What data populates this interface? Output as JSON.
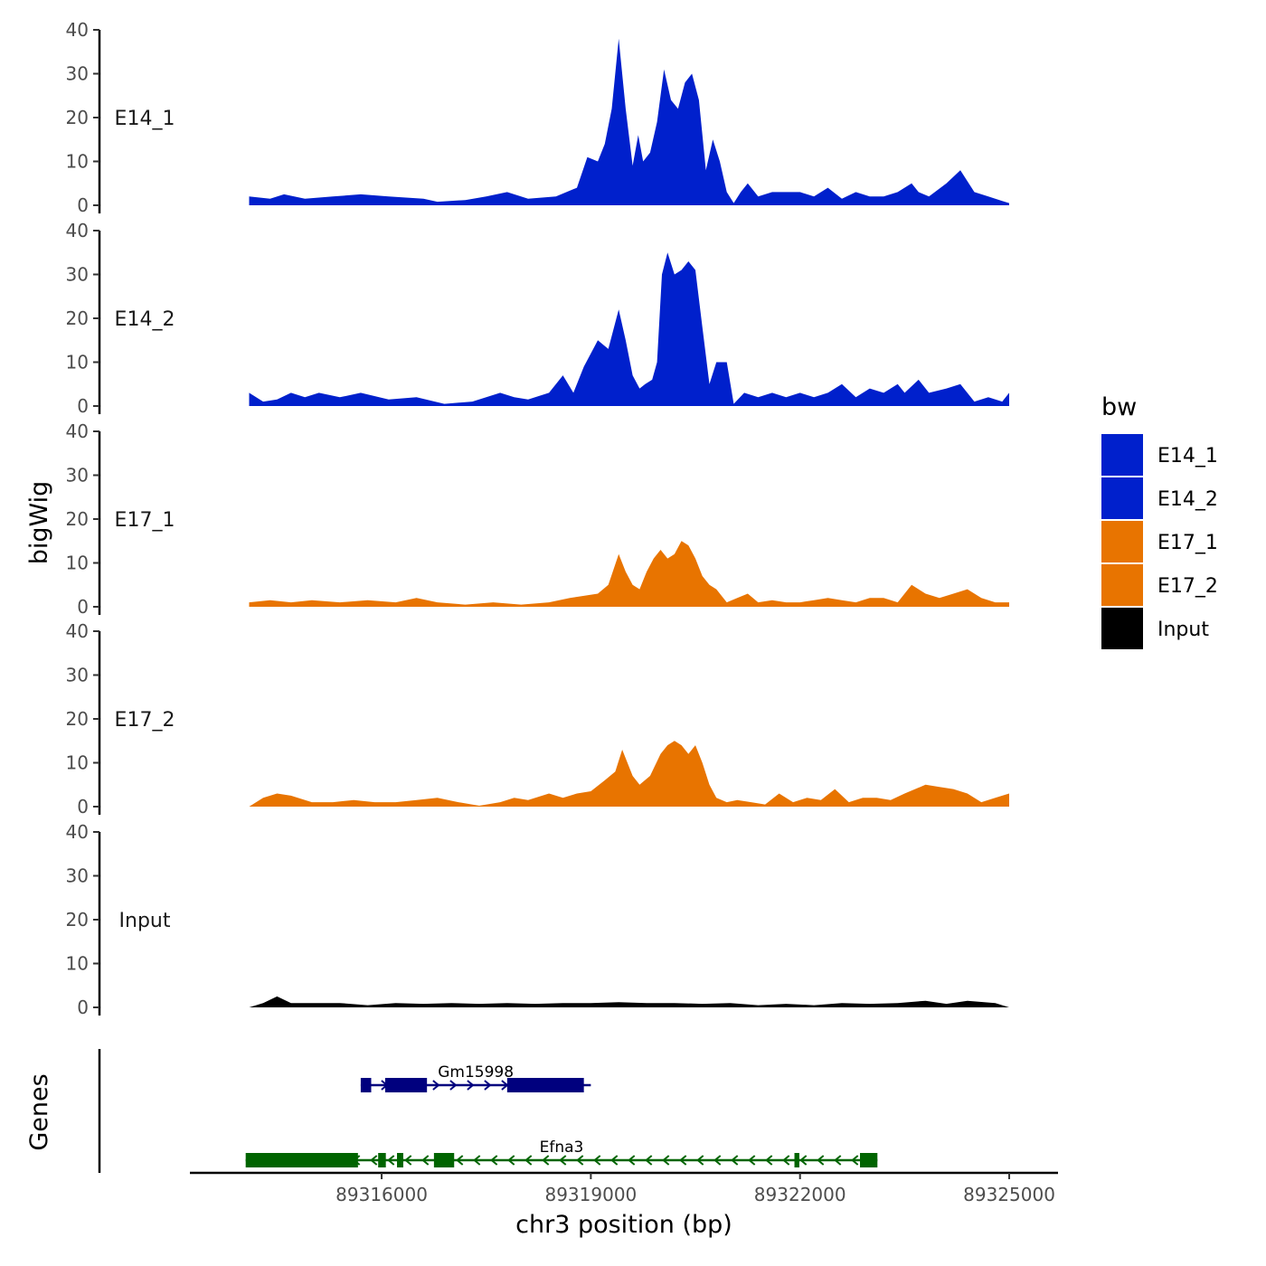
{
  "chart_data": {
    "type": "area",
    "ylabel": "bigWig",
    "xlabel": "chr3 position (bp)",
    "ylim": [
      0,
      40
    ],
    "yticks": [
      "0",
      "10",
      "20",
      "30",
      "40"
    ],
    "xlim": [
      89313250,
      89325700
    ],
    "xticks": [
      {
        "value": 89316000,
        "label": "89316000"
      },
      {
        "value": 89319000,
        "label": "89319000"
      },
      {
        "value": 89322000,
        "label": "89322000"
      },
      {
        "value": 89325000,
        "label": "89325000"
      }
    ],
    "x_range": [
      89314100,
      89325000
    ],
    "series": [
      {
        "name": "E14_1",
        "color": "#0020CC",
        "points": [
          [
            89314100,
            2
          ],
          [
            89314400,
            1.5
          ],
          [
            89314600,
            2.5
          ],
          [
            89314900,
            1.5
          ],
          [
            89315300,
            2
          ],
          [
            89315700,
            2.5
          ],
          [
            89316100,
            2
          ],
          [
            89316600,
            1.5
          ],
          [
            89316800,
            0.8
          ],
          [
            89317200,
            1.2
          ],
          [
            89317500,
            2
          ],
          [
            89317800,
            3
          ],
          [
            89318100,
            1.5
          ],
          [
            89318500,
            2
          ],
          [
            89318800,
            4
          ],
          [
            89318950,
            11
          ],
          [
            89319100,
            10
          ],
          [
            89319200,
            14
          ],
          [
            89319300,
            22
          ],
          [
            89319400,
            38
          ],
          [
            89319500,
            22
          ],
          [
            89319600,
            9
          ],
          [
            89319680,
            16
          ],
          [
            89319750,
            10
          ],
          [
            89319850,
            12
          ],
          [
            89319950,
            19
          ],
          [
            89320050,
            31
          ],
          [
            89320150,
            24
          ],
          [
            89320250,
            22
          ],
          [
            89320350,
            28
          ],
          [
            89320450,
            30
          ],
          [
            89320550,
            24
          ],
          [
            89320650,
            8
          ],
          [
            89320750,
            15
          ],
          [
            89320850,
            10
          ],
          [
            89320950,
            3
          ],
          [
            89321050,
            0.5
          ],
          [
            89321150,
            3
          ],
          [
            89321250,
            5
          ],
          [
            89321400,
            2
          ],
          [
            89321600,
            3
          ],
          [
            89321800,
            3
          ],
          [
            89322000,
            3
          ],
          [
            89322200,
            2
          ],
          [
            89322400,
            4
          ],
          [
            89322600,
            1.5
          ],
          [
            89322800,
            3
          ],
          [
            89323000,
            2
          ],
          [
            89323200,
            2
          ],
          [
            89323400,
            3
          ],
          [
            89323600,
            5
          ],
          [
            89323700,
            3
          ],
          [
            89323850,
            2
          ],
          [
            89324100,
            5
          ],
          [
            89324300,
            8
          ],
          [
            89324500,
            3
          ],
          [
            89324700,
            2
          ],
          [
            89324900,
            1
          ],
          [
            89325000,
            0.5
          ]
        ]
      },
      {
        "name": "E14_2",
        "color": "#0020CC",
        "points": [
          [
            89314100,
            3
          ],
          [
            89314300,
            1
          ],
          [
            89314500,
            1.5
          ],
          [
            89314700,
            3
          ],
          [
            89314900,
            2
          ],
          [
            89315100,
            3
          ],
          [
            89315400,
            2
          ],
          [
            89315700,
            3
          ],
          [
            89316100,
            1.5
          ],
          [
            89316500,
            2
          ],
          [
            89316900,
            0.5
          ],
          [
            89317300,
            1
          ],
          [
            89317700,
            3
          ],
          [
            89317900,
            2
          ],
          [
            89318100,
            1.5
          ],
          [
            89318400,
            3
          ],
          [
            89318600,
            7
          ],
          [
            89318750,
            3
          ],
          [
            89318900,
            9
          ],
          [
            89319100,
            15
          ],
          [
            89319250,
            13
          ],
          [
            89319400,
            22
          ],
          [
            89319500,
            15
          ],
          [
            89319600,
            7
          ],
          [
            89319700,
            4
          ],
          [
            89319780,
            5
          ],
          [
            89319880,
            6
          ],
          [
            89319950,
            10
          ],
          [
            89320020,
            30
          ],
          [
            89320100,
            35
          ],
          [
            89320200,
            30
          ],
          [
            89320300,
            31
          ],
          [
            89320400,
            33
          ],
          [
            89320500,
            31
          ],
          [
            89320600,
            18
          ],
          [
            89320700,
            5
          ],
          [
            89320800,
            10
          ],
          [
            89320950,
            10
          ],
          [
            89321050,
            0.5
          ],
          [
            89321200,
            3
          ],
          [
            89321400,
            2
          ],
          [
            89321600,
            3
          ],
          [
            89321800,
            2
          ],
          [
            89322000,
            3
          ],
          [
            89322200,
            2
          ],
          [
            89322400,
            3
          ],
          [
            89322600,
            5
          ],
          [
            89322800,
            2
          ],
          [
            89323000,
            4
          ],
          [
            89323200,
            3
          ],
          [
            89323400,
            5
          ],
          [
            89323500,
            3
          ],
          [
            89323700,
            6
          ],
          [
            89323850,
            3
          ],
          [
            89324100,
            4
          ],
          [
            89324300,
            5
          ],
          [
            89324500,
            1
          ],
          [
            89324700,
            2
          ],
          [
            89324900,
            1
          ],
          [
            89325000,
            3
          ]
        ]
      },
      {
        "name": "E17_1",
        "color": "#E87400",
        "points": [
          [
            89314100,
            1
          ],
          [
            89314400,
            1.5
          ],
          [
            89314700,
            1
          ],
          [
            89315000,
            1.5
          ],
          [
            89315400,
            1
          ],
          [
            89315800,
            1.5
          ],
          [
            89316200,
            1
          ],
          [
            89316500,
            2
          ],
          [
            89316800,
            1
          ],
          [
            89317200,
            0.5
          ],
          [
            89317600,
            1
          ],
          [
            89318000,
            0.5
          ],
          [
            89318400,
            1
          ],
          [
            89318700,
            2
          ],
          [
            89318900,
            2.5
          ],
          [
            89319100,
            3
          ],
          [
            89319250,
            5
          ],
          [
            89319400,
            12
          ],
          [
            89319500,
            8
          ],
          [
            89319600,
            5
          ],
          [
            89319700,
            4
          ],
          [
            89319800,
            8
          ],
          [
            89319900,
            11
          ],
          [
            89320000,
            13
          ],
          [
            89320100,
            11
          ],
          [
            89320200,
            12
          ],
          [
            89320300,
            15
          ],
          [
            89320400,
            14
          ],
          [
            89320500,
            11
          ],
          [
            89320600,
            7
          ],
          [
            89320700,
            5
          ],
          [
            89320800,
            4
          ],
          [
            89320950,
            1
          ],
          [
            89321100,
            2
          ],
          [
            89321250,
            3
          ],
          [
            89321400,
            1
          ],
          [
            89321600,
            1.5
          ],
          [
            89321800,
            1
          ],
          [
            89322000,
            1
          ],
          [
            89322200,
            1.5
          ],
          [
            89322400,
            2
          ],
          [
            89322600,
            1.5
          ],
          [
            89322800,
            1
          ],
          [
            89323000,
            2
          ],
          [
            89323200,
            2
          ],
          [
            89323400,
            1
          ],
          [
            89323600,
            5
          ],
          [
            89323800,
            3
          ],
          [
            89324000,
            2
          ],
          [
            89324200,
            3
          ],
          [
            89324400,
            4
          ],
          [
            89324600,
            2
          ],
          [
            89324800,
            1
          ],
          [
            89325000,
            1
          ]
        ]
      },
      {
        "name": "E17_2",
        "color": "#E87400",
        "points": [
          [
            89314100,
            0
          ],
          [
            89314300,
            2
          ],
          [
            89314500,
            3
          ],
          [
            89314700,
            2.5
          ],
          [
            89315000,
            1
          ],
          [
            89315300,
            1
          ],
          [
            89315600,
            1.5
          ],
          [
            89315900,
            1
          ],
          [
            89316200,
            1
          ],
          [
            89316500,
            1.5
          ],
          [
            89316800,
            2
          ],
          [
            89317100,
            1
          ],
          [
            89317400,
            0.2
          ],
          [
            89317700,
            1
          ],
          [
            89317900,
            2
          ],
          [
            89318100,
            1.5
          ],
          [
            89318400,
            3
          ],
          [
            89318600,
            2
          ],
          [
            89318800,
            3
          ],
          [
            89319000,
            3.5
          ],
          [
            89319200,
            6
          ],
          [
            89319350,
            8
          ],
          [
            89319450,
            13
          ],
          [
            89319600,
            7
          ],
          [
            89319700,
            5
          ],
          [
            89319850,
            7
          ],
          [
            89320000,
            12
          ],
          [
            89320100,
            14
          ],
          [
            89320200,
            15
          ],
          [
            89320300,
            14
          ],
          [
            89320400,
            12
          ],
          [
            89320500,
            14
          ],
          [
            89320600,
            10
          ],
          [
            89320700,
            5
          ],
          [
            89320800,
            2
          ],
          [
            89320950,
            1
          ],
          [
            89321100,
            1.5
          ],
          [
            89321300,
            1
          ],
          [
            89321500,
            0.5
          ],
          [
            89321700,
            3
          ],
          [
            89321900,
            1
          ],
          [
            89322100,
            2
          ],
          [
            89322300,
            1.5
          ],
          [
            89322500,
            4
          ],
          [
            89322700,
            1
          ],
          [
            89322900,
            2
          ],
          [
            89323100,
            2
          ],
          [
            89323300,
            1.5
          ],
          [
            89323500,
            3
          ],
          [
            89323800,
            5
          ],
          [
            89324000,
            4.5
          ],
          [
            89324200,
            4
          ],
          [
            89324400,
            3
          ],
          [
            89324600,
            1
          ],
          [
            89324800,
            2
          ],
          [
            89325000,
            3
          ]
        ]
      },
      {
        "name": "Input",
        "color": "#000000",
        "points": [
          [
            89314100,
            0
          ],
          [
            89314300,
            1
          ],
          [
            89314500,
            2.5
          ],
          [
            89314700,
            1
          ],
          [
            89315000,
            1
          ],
          [
            89315400,
            1
          ],
          [
            89315800,
            0.5
          ],
          [
            89316200,
            1
          ],
          [
            89316600,
            0.8
          ],
          [
            89317000,
            1
          ],
          [
            89317400,
            0.8
          ],
          [
            89317800,
            1
          ],
          [
            89318200,
            0.8
          ],
          [
            89318600,
            1
          ],
          [
            89319000,
            1
          ],
          [
            89319400,
            1.2
          ],
          [
            89319800,
            1
          ],
          [
            89320200,
            1
          ],
          [
            89320600,
            0.8
          ],
          [
            89321000,
            1
          ],
          [
            89321400,
            0.5
          ],
          [
            89321800,
            0.8
          ],
          [
            89322200,
            0.5
          ],
          [
            89322600,
            1
          ],
          [
            89323000,
            0.8
          ],
          [
            89323400,
            1
          ],
          [
            89323800,
            1.5
          ],
          [
            89324100,
            0.8
          ],
          [
            89324400,
            1.5
          ],
          [
            89324800,
            1
          ],
          [
            89325000,
            0
          ]
        ]
      }
    ],
    "genes_track_label": "Genes",
    "genes": [
      {
        "name": "Gm15998",
        "strand": "+",
        "color": "#00007E",
        "start": 89315700,
        "end": 89319000,
        "exons": [
          [
            89315700,
            89315850
          ],
          [
            89316050,
            89316650
          ],
          [
            89317800,
            89318900
          ]
        ]
      },
      {
        "name": "Efna3",
        "strand": "-",
        "color": "#006400",
        "start": 89314050,
        "end": 89323110,
        "exons": [
          [
            89314050,
            89315660
          ],
          [
            89315950,
            89316060
          ],
          [
            89316220,
            89316310
          ],
          [
            89316750,
            89317040
          ],
          [
            89321920,
            89321990
          ],
          [
            89322860,
            89323110
          ]
        ]
      }
    ],
    "legend": {
      "title": "bw",
      "position": "right",
      "entries": [
        {
          "label": "E14_1",
          "color": "#0020CC"
        },
        {
          "label": "E14_2",
          "color": "#0020CC"
        },
        {
          "label": "E17_1",
          "color": "#E87400"
        },
        {
          "label": "E17_2",
          "color": "#E87400"
        },
        {
          "label": "Input",
          "color": "#000000"
        }
      ]
    }
  }
}
